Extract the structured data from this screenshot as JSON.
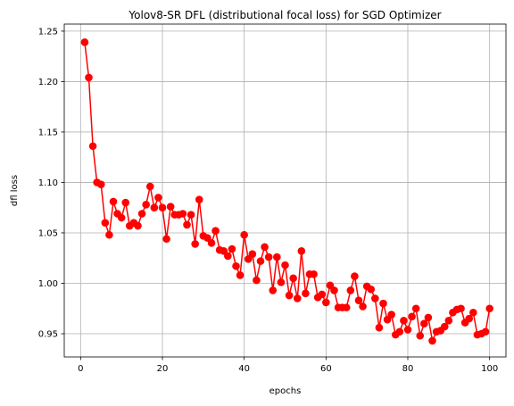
{
  "chart_data": {
    "type": "line",
    "title": "Yolov8-SR DFL (distributional focal loss) for SGD Optimizer",
    "xlabel": "epochs",
    "ylabel": "dfl loss",
    "xlim": [
      -4,
      104
    ],
    "ylim": [
      0.927,
      1.257
    ],
    "xticks": [
      0,
      20,
      40,
      60,
      80,
      100
    ],
    "xtick_labels": [
      "0",
      "20",
      "40",
      "60",
      "80",
      "100"
    ],
    "yticks": [
      0.95,
      1.0,
      1.05,
      1.1,
      1.15,
      1.2,
      1.25
    ],
    "ytick_labels": [
      "0.95",
      "1.00",
      "1.05",
      "1.10",
      "1.15",
      "1.20",
      "1.25"
    ],
    "grid": true,
    "legend": false,
    "series": [
      {
        "color": "#ff0000",
        "marker": "circle",
        "x": [
          1,
          2,
          3,
          4,
          5,
          6,
          7,
          8,
          9,
          10,
          11,
          12,
          13,
          14,
          15,
          16,
          17,
          18,
          19,
          20,
          21,
          22,
          23,
          24,
          25,
          26,
          27,
          28,
          29,
          30,
          31,
          32,
          33,
          34,
          35,
          36,
          37,
          38,
          39,
          40,
          41,
          42,
          43,
          44,
          45,
          46,
          47,
          48,
          49,
          50,
          51,
          52,
          53,
          54,
          55,
          56,
          57,
          58,
          59,
          60,
          61,
          62,
          63,
          64,
          65,
          66,
          67,
          68,
          69,
          70,
          71,
          72,
          73,
          74,
          75,
          76,
          77,
          78,
          79,
          80,
          81,
          82,
          83,
          84,
          85,
          86,
          87,
          88,
          89,
          90,
          91,
          92,
          93,
          94,
          95,
          96,
          97,
          98,
          99,
          100
        ],
        "values": [
          1.239,
          1.204,
          1.136,
          1.1,
          1.098,
          1.06,
          1.048,
          1.081,
          1.069,
          1.065,
          1.08,
          1.057,
          1.06,
          1.057,
          1.069,
          1.078,
          1.096,
          1.075,
          1.085,
          1.075,
          1.044,
          1.076,
          1.068,
          1.068,
          1.069,
          1.058,
          1.068,
          1.039,
          1.083,
          1.047,
          1.045,
          1.04,
          1.052,
          1.033,
          1.032,
          1.027,
          1.034,
          1.017,
          1.008,
          1.048,
          1.024,
          1.029,
          1.003,
          1.022,
          1.036,
          1.026,
          0.993,
          1.026,
          1.001,
          1.018,
          0.988,
          1.005,
          0.985,
          1.032,
          0.99,
          1.009,
          1.009,
          0.986,
          0.989,
          0.981,
          0.998,
          0.993,
          0.976,
          0.976,
          0.976,
          0.993,
          1.007,
          0.983,
          0.977,
          0.997,
          0.994,
          0.985,
          0.956,
          0.98,
          0.964,
          0.969,
          0.949,
          0.952,
          0.963,
          0.954,
          0.967,
          0.975,
          0.948,
          0.96,
          0.966,
          0.943,
          0.952,
          0.953,
          0.957,
          0.963,
          0.971,
          0.974,
          0.975,
          0.961,
          0.965,
          0.971,
          0.949,
          0.95,
          0.952,
          0.975
        ]
      }
    ]
  }
}
